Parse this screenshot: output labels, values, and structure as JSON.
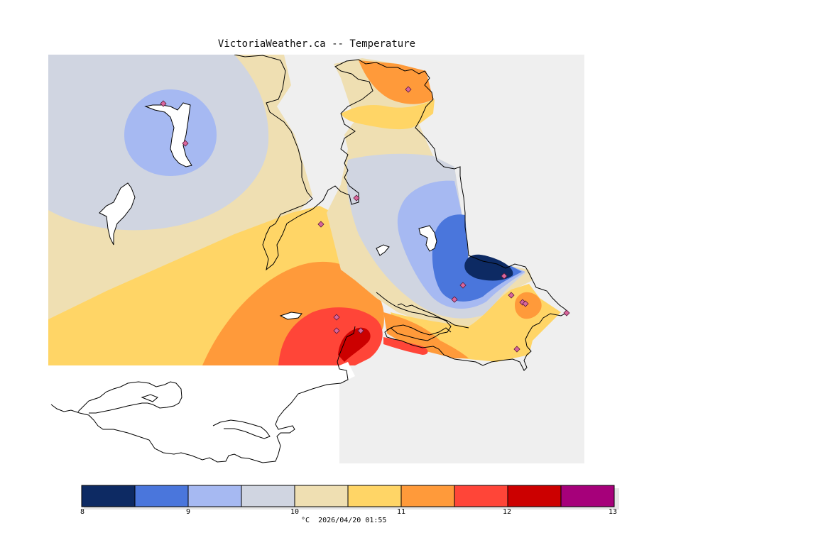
{
  "title": "VictoriaWeather.ca -- Temperature",
  "colors": {
    "background": "#efefef",
    "c8_85": "#0d2a63",
    "c85_9": "#4a76dc",
    "c9_95": "#a6b9f2",
    "c95_10": "#d0d5e1",
    "c10_105": "#efdfb2",
    "c105_11": "#ffd566",
    "c11_115": "#ff9a3a",
    "c115_12": "#ff4538",
    "c12_125": "#cc0000",
    "c125_13": "#a6007a",
    "coast": "#000000",
    "station": "#d9669c"
  },
  "colorbar": {
    "ticks": [
      "8",
      "9",
      "10",
      "11",
      "12",
      "13"
    ],
    "unit": "°C",
    "timestamp": "2026/04/20 01:55"
  },
  "stations_count": 16
}
